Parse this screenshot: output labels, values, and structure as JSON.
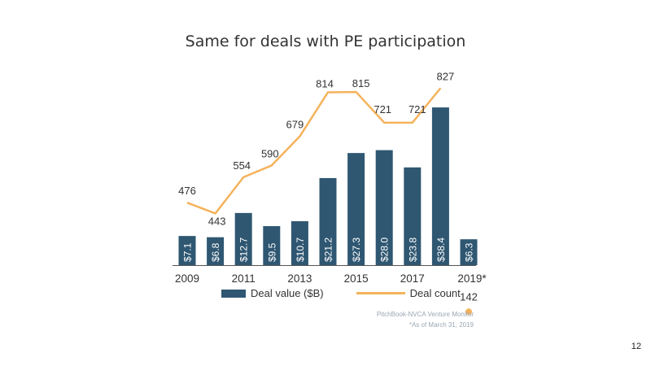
{
  "title": "Same for deals with PE participation",
  "colors": {
    "bar": "#2f5772",
    "line": "#f4b35c"
  },
  "chart_data": {
    "type": "bar",
    "categories": [
      "2009",
      "2010",
      "2011",
      "2012",
      "2013",
      "2014",
      "2015",
      "2016",
      "2017",
      "2018",
      "2019*"
    ],
    "x_tick_labels": [
      "2009",
      "2011",
      "2013",
      "2015",
      "2017",
      "2019*"
    ],
    "series": [
      {
        "name": "Deal value ($B)",
        "type": "bar",
        "values": [
          7.1,
          6.8,
          12.7,
          9.5,
          10.7,
          21.2,
          27.3,
          28.0,
          23.8,
          38.4,
          6.3
        ],
        "labels": [
          "$7.1",
          "$6.8",
          "$12.7",
          "$9.5",
          "$10.7",
          "$21.2",
          "$27.3",
          "$28.0",
          "$23.8",
          "$38.4",
          "$6.3"
        ]
      },
      {
        "name": "Deal count",
        "type": "line",
        "values": [
          476,
          443,
          554,
          590,
          679,
          814,
          815,
          721,
          721,
          827,
          142
        ],
        "labels": [
          "476",
          "443",
          "554",
          "590",
          "679",
          "814",
          "815",
          "721",
          "721",
          "827",
          "142"
        ]
      }
    ],
    "legend_position": "bottom",
    "grid": false
  },
  "source": {
    "line1": "PitchBook-NVCA Venture Monitor",
    "line2": "*As of March 31, 2019"
  },
  "page_number": "12"
}
